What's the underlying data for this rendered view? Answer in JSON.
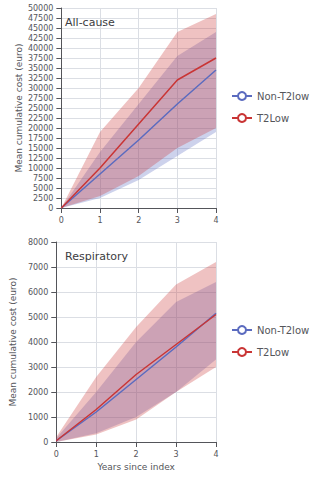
{
  "chart_data": [
    {
      "type": "line",
      "title": "All-cause",
      "ylabel": "Mean cumulative cost (euro)",
      "x": [
        0,
        1,
        2,
        3,
        4
      ],
      "xlim": [
        0,
        4
      ],
      "xticks": [
        0,
        1,
        2,
        3,
        4
      ],
      "ylim": [
        0,
        50000
      ],
      "yticks": [
        0,
        2500,
        5000,
        7500,
        10000,
        12500,
        15000,
        17500,
        20000,
        22500,
        25000,
        27500,
        30000,
        32500,
        35000,
        37500,
        40000,
        42500,
        45000,
        47500,
        50000
      ],
      "grid": true,
      "legend": "right",
      "series": [
        {
          "name": "Non-T2low",
          "color": "#5b6bbf",
          "values": [
            0,
            8500,
            17000,
            26000,
            34500
          ],
          "lower": [
            0,
            2500,
            7000,
            13000,
            19000
          ],
          "upper": [
            0,
            14000,
            26000,
            38000,
            44000
          ]
        },
        {
          "name": "T2Low",
          "color": "#c93535",
          "values": [
            0,
            10000,
            21000,
            32000,
            37500
          ],
          "lower": [
            0,
            3000,
            8000,
            15000,
            20000
          ],
          "upper": [
            0,
            19000,
            30000,
            44000,
            48500
          ]
        }
      ]
    },
    {
      "type": "line",
      "title": "Respiratory",
      "xlabel": "Years since index",
      "ylabel": "Mean cumulative cost (euro)",
      "x": [
        0,
        1,
        2,
        3,
        4
      ],
      "xlim": [
        0,
        4
      ],
      "xticks": [
        0,
        1,
        2,
        3,
        4
      ],
      "ylim": [
        0,
        8000
      ],
      "yticks": [
        0,
        1000,
        2000,
        3000,
        4000,
        5000,
        6000,
        7000,
        8000
      ],
      "grid": true,
      "legend": "right",
      "series": [
        {
          "name": "Non-T2low",
          "color": "#5b6bbf",
          "values": [
            50,
            1200,
            2500,
            3800,
            5150
          ],
          "lower": [
            0,
            350,
            1000,
            2000,
            3300
          ],
          "upper": [
            150,
            2000,
            4000,
            5600,
            6400
          ]
        },
        {
          "name": "T2Low",
          "color": "#c93535",
          "values": [
            50,
            1300,
            2700,
            3900,
            5100
          ],
          "lower": [
            0,
            300,
            900,
            2000,
            3000
          ],
          "upper": [
            200,
            2600,
            4600,
            6300,
            7200
          ]
        }
      ]
    }
  ]
}
